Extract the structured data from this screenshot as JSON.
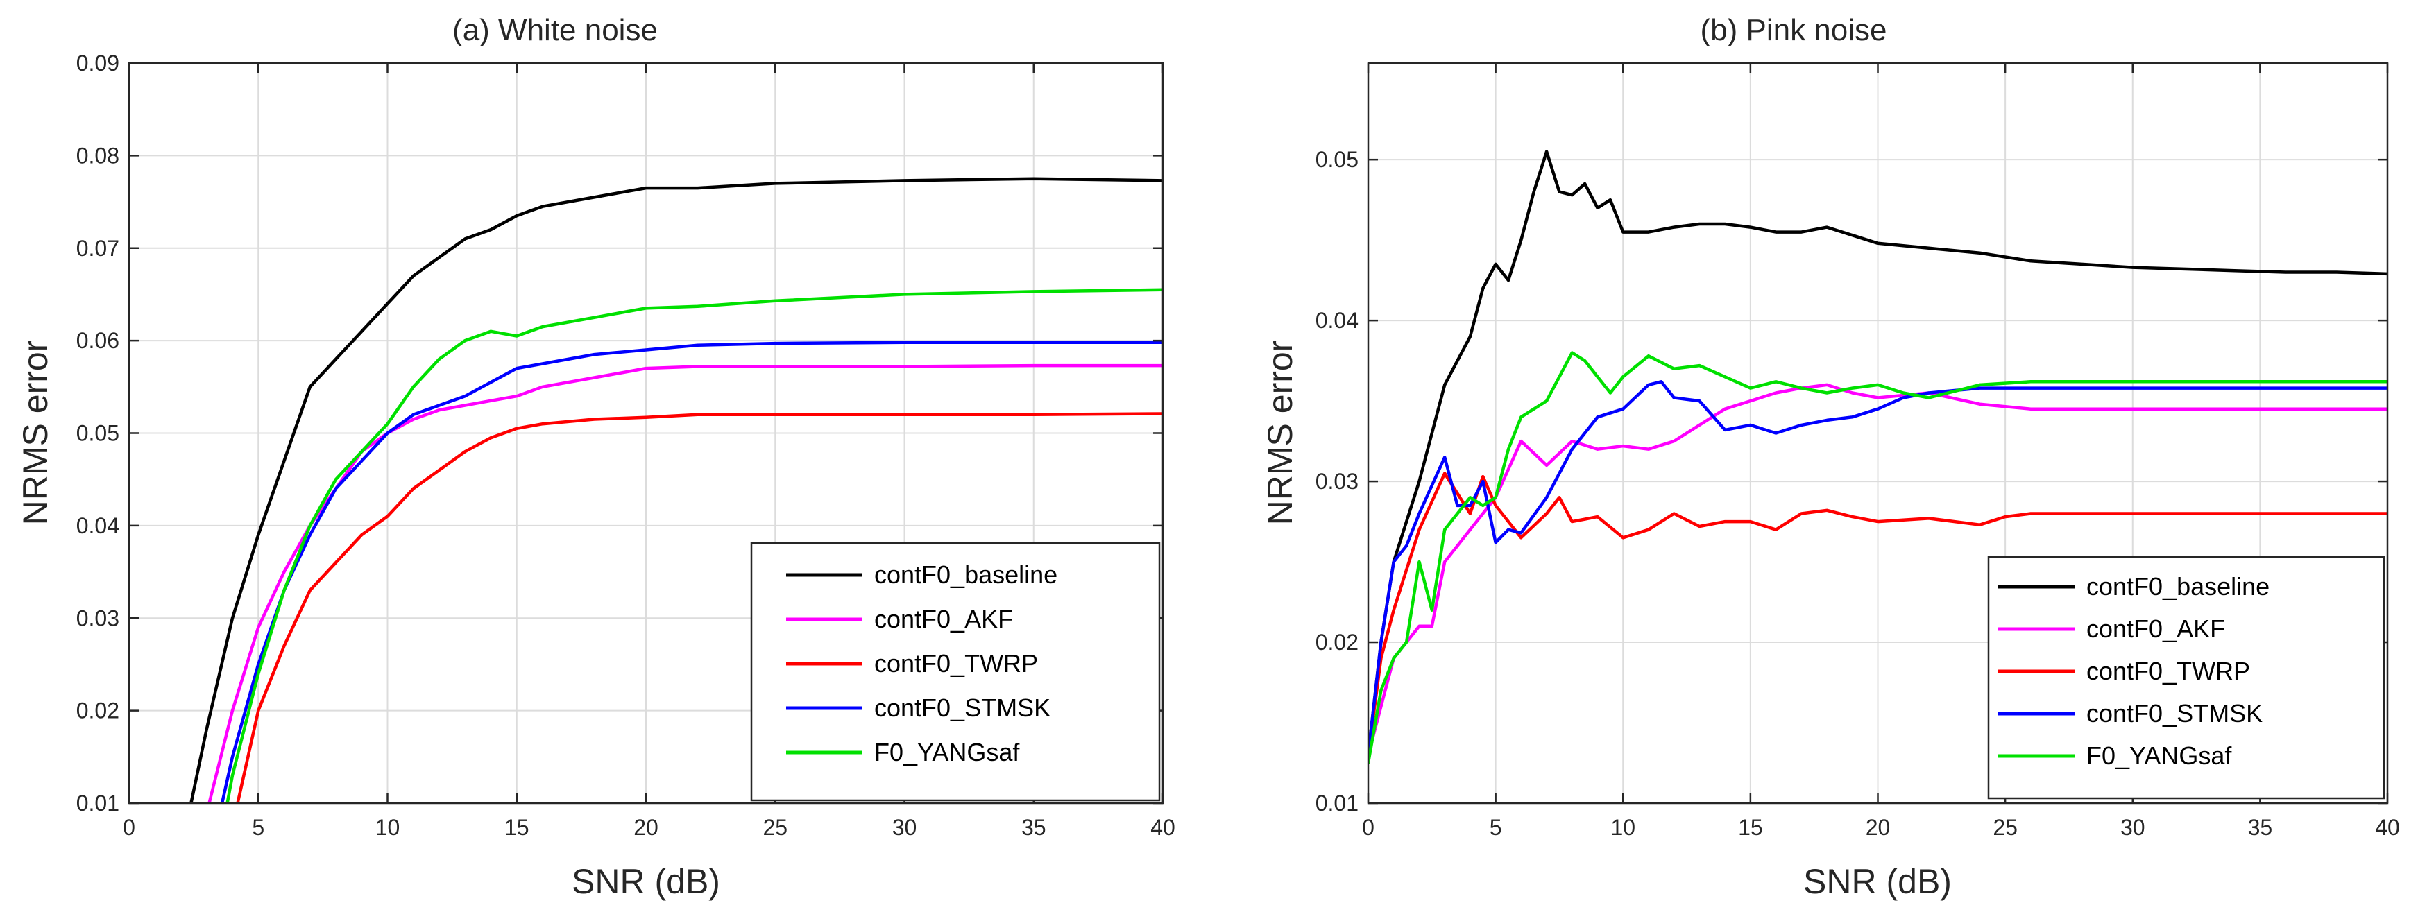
{
  "chart_data": [
    {
      "type": "line",
      "title": "(a) White noise",
      "xlabel": "SNR (dB)",
      "ylabel": "NRMS error",
      "xlim": [
        0,
        40
      ],
      "ylim": [
        0.01,
        0.09
      ],
      "xticks": [
        0,
        5,
        10,
        15,
        20,
        25,
        30,
        35,
        40
      ],
      "yticks": [
        0.01,
        0.02,
        0.03,
        0.04,
        0.05,
        0.06,
        0.07,
        0.08,
        0.09
      ],
      "xtick_labels": [
        "0",
        "5",
        "10",
        "15",
        "20",
        "25",
        "30",
        "35",
        "40"
      ],
      "ytick_labels": [
        "0.01",
        "0.02",
        "0.03",
        "0.04",
        "0.05",
        "0.06",
        "0.07",
        "0.08",
        "0.09"
      ],
      "grid": true,
      "legend_position": "bottom-right",
      "series": [
        {
          "name": "contF0_baseline",
          "color": "#000000",
          "x": [
            2.4,
            3,
            4,
            5,
            6,
            7,
            8,
            9,
            10,
            11,
            12,
            13,
            14,
            15,
            16,
            18,
            20,
            22,
            25,
            30,
            35,
            40
          ],
          "y": [
            0.01,
            0.018,
            0.03,
            0.039,
            0.047,
            0.055,
            0.058,
            0.061,
            0.064,
            0.067,
            0.069,
            0.071,
            0.072,
            0.0735,
            0.0745,
            0.0755,
            0.0765,
            0.0765,
            0.077,
            0.0773,
            0.0775,
            0.0773
          ]
        },
        {
          "name": "contF0_AKF",
          "color": "#ff00ff",
          "x": [
            3.1,
            4,
            5,
            6,
            7,
            8,
            9,
            10,
            11,
            12,
            13,
            14,
            15,
            16,
            18,
            20,
            22,
            25,
            30,
            35,
            40
          ],
          "y": [
            0.01,
            0.02,
            0.029,
            0.035,
            0.04,
            0.044,
            0.048,
            0.05,
            0.0515,
            0.0525,
            0.053,
            0.0535,
            0.054,
            0.055,
            0.056,
            0.057,
            0.0572,
            0.0572,
            0.0572,
            0.0573,
            0.0573
          ]
        },
        {
          "name": "contF0_TWRP",
          "color": "#ff0000",
          "x": [
            4.2,
            5,
            6,
            7,
            8,
            9,
            10,
            11,
            12,
            13,
            14,
            15,
            16,
            18,
            20,
            22,
            25,
            30,
            35,
            40
          ],
          "y": [
            0.01,
            0.02,
            0.027,
            0.033,
            0.036,
            0.039,
            0.041,
            0.044,
            0.046,
            0.048,
            0.0495,
            0.0505,
            0.051,
            0.0515,
            0.0517,
            0.052,
            0.052,
            0.052,
            0.052,
            0.0521
          ]
        },
        {
          "name": "contF0_STMSK",
          "color": "#0000ff",
          "x": [
            3.6,
            4,
            5,
            6,
            7,
            8,
            9,
            10,
            11,
            12,
            13,
            14,
            15,
            16,
            18,
            20,
            22,
            25,
            30,
            35,
            40
          ],
          "y": [
            0.01,
            0.015,
            0.025,
            0.033,
            0.039,
            0.044,
            0.047,
            0.05,
            0.052,
            0.053,
            0.054,
            0.0555,
            0.057,
            0.0575,
            0.0585,
            0.059,
            0.0595,
            0.0597,
            0.0598,
            0.0598,
            0.0598
          ]
        },
        {
          "name": "F0_YANGsaf",
          "color": "#00e000",
          "x": [
            3.8,
            4,
            5,
            6,
            7,
            8,
            9,
            10,
            11,
            12,
            13,
            14,
            15,
            16,
            18,
            20,
            22,
            25,
            30,
            35,
            40
          ],
          "y": [
            0.01,
            0.013,
            0.024,
            0.033,
            0.04,
            0.045,
            0.048,
            0.051,
            0.055,
            0.058,
            0.06,
            0.061,
            0.0605,
            0.0615,
            0.0625,
            0.0635,
            0.0637,
            0.0643,
            0.065,
            0.0653,
            0.0655
          ]
        }
      ]
    },
    {
      "type": "line",
      "title": "(b) Pink noise",
      "xlabel": "SNR (dB)",
      "ylabel": "NRMS error",
      "xlim": [
        0,
        40
      ],
      "ylim": [
        0.01,
        0.056
      ],
      "xticks": [
        0,
        5,
        10,
        15,
        20,
        25,
        30,
        35,
        40
      ],
      "yticks": [
        0.01,
        0.02,
        0.03,
        0.04,
        0.05
      ],
      "xtick_labels": [
        "0",
        "5",
        "10",
        "15",
        "20",
        "25",
        "30",
        "35",
        "40"
      ],
      "ytick_labels": [
        "0.01",
        "0.02",
        "0.03",
        "0.04",
        "0.05"
      ],
      "grid": true,
      "legend_position": "bottom-right",
      "series": [
        {
          "name": "contF0_baseline",
          "color": "#000000",
          "x": [
            0,
            0.5,
            1,
            2,
            3,
            4,
            4.5,
            5,
            5.5,
            6,
            6.5,
            7,
            7.5,
            8,
            8.5,
            9,
            9.5,
            10,
            11,
            12,
            13,
            14,
            15,
            16,
            17,
            18,
            19,
            20,
            22,
            24,
            26,
            28,
            30,
            32,
            34,
            36,
            38,
            40
          ],
          "y": [
            0.013,
            0.02,
            0.025,
            0.03,
            0.036,
            0.039,
            0.042,
            0.0435,
            0.0425,
            0.045,
            0.048,
            0.0505,
            0.048,
            0.0478,
            0.0485,
            0.047,
            0.0475,
            0.0455,
            0.0455,
            0.0458,
            0.046,
            0.046,
            0.0458,
            0.0455,
            0.0455,
            0.0458,
            0.0453,
            0.0448,
            0.0445,
            0.0442,
            0.0437,
            0.0435,
            0.0433,
            0.0432,
            0.0431,
            0.043,
            0.043,
            0.0429
          ]
        },
        {
          "name": "contF0_AKF",
          "color": "#ff00ff",
          "x": [
            0,
            1,
            2,
            2.5,
            3,
            4,
            5,
            6,
            7,
            8,
            9,
            10,
            11,
            12,
            13,
            14,
            15,
            16,
            17,
            18,
            19,
            20,
            22,
            24,
            26,
            28,
            30,
            32,
            34,
            36,
            38,
            40
          ],
          "y": [
            0.013,
            0.019,
            0.021,
            0.021,
            0.025,
            0.027,
            0.029,
            0.0325,
            0.031,
            0.0325,
            0.032,
            0.0322,
            0.032,
            0.0325,
            0.0335,
            0.0345,
            0.035,
            0.0355,
            0.0358,
            0.036,
            0.0355,
            0.0352,
            0.0355,
            0.0348,
            0.0345,
            0.0345,
            0.0345,
            0.0345,
            0.0345,
            0.0345,
            0.0345,
            0.0345
          ]
        },
        {
          "name": "contF0_TWRP",
          "color": "#ff0000",
          "x": [
            0,
            0.5,
            1,
            2,
            3,
            4,
            4.5,
            5,
            5.5,
            6,
            7,
            7.5,
            8,
            9,
            10,
            11,
            12,
            13,
            14,
            15,
            16,
            17,
            18,
            19,
            20,
            22,
            24,
            25,
            26,
            28,
            30,
            32,
            34,
            36,
            38,
            40
          ],
          "y": [
            0.013,
            0.019,
            0.022,
            0.027,
            0.0305,
            0.028,
            0.0303,
            0.0285,
            0.0275,
            0.0265,
            0.028,
            0.029,
            0.0275,
            0.0278,
            0.0265,
            0.027,
            0.028,
            0.0272,
            0.0275,
            0.0275,
            0.027,
            0.028,
            0.0282,
            0.0278,
            0.0275,
            0.0277,
            0.0273,
            0.0278,
            0.028,
            0.028,
            0.028,
            0.028,
            0.028,
            0.028,
            0.028,
            0.028
          ]
        },
        {
          "name": "contF0_STMSK",
          "color": "#0000ff",
          "x": [
            0,
            0.5,
            1,
            1.5,
            2,
            3,
            3.5,
            4,
            4.5,
            5,
            5.5,
            6,
            7,
            8,
            9,
            10,
            11,
            11.5,
            12,
            13,
            14,
            15,
            16,
            17,
            18,
            19,
            20,
            21,
            22,
            24,
            26,
            28,
            30,
            32,
            34,
            36,
            38,
            40
          ],
          "y": [
            0.013,
            0.02,
            0.025,
            0.026,
            0.028,
            0.0315,
            0.0285,
            0.0285,
            0.03,
            0.0262,
            0.027,
            0.0268,
            0.029,
            0.032,
            0.034,
            0.0345,
            0.036,
            0.0362,
            0.0352,
            0.035,
            0.0332,
            0.0335,
            0.033,
            0.0335,
            0.0338,
            0.034,
            0.0345,
            0.0352,
            0.0355,
            0.0358,
            0.0358,
            0.0358,
            0.0358,
            0.0358,
            0.0358,
            0.0358,
            0.0358,
            0.0358
          ]
        },
        {
          "name": "F0_YANGsaf",
          "color": "#00e000",
          "x": [
            0,
            0.5,
            1,
            1.5,
            2,
            2.5,
            3,
            3.5,
            4,
            4.5,
            5,
            5.5,
            6,
            7,
            8,
            8.5,
            9,
            9.5,
            10,
            11,
            12,
            13,
            14,
            15,
            16,
            17,
            18,
            19,
            20,
            21,
            22,
            24,
            26,
            28,
            30,
            32,
            34,
            36,
            38,
            40
          ],
          "y": [
            0.0125,
            0.017,
            0.019,
            0.02,
            0.025,
            0.022,
            0.027,
            0.028,
            0.029,
            0.0285,
            0.029,
            0.032,
            0.034,
            0.035,
            0.038,
            0.0375,
            0.0365,
            0.0355,
            0.0365,
            0.0378,
            0.037,
            0.0372,
            0.0365,
            0.0358,
            0.0362,
            0.0358,
            0.0355,
            0.0358,
            0.036,
            0.0355,
            0.0352,
            0.036,
            0.0362,
            0.0362,
            0.0362,
            0.0362,
            0.0362,
            0.0362,
            0.0362,
            0.0362
          ]
        }
      ]
    }
  ]
}
